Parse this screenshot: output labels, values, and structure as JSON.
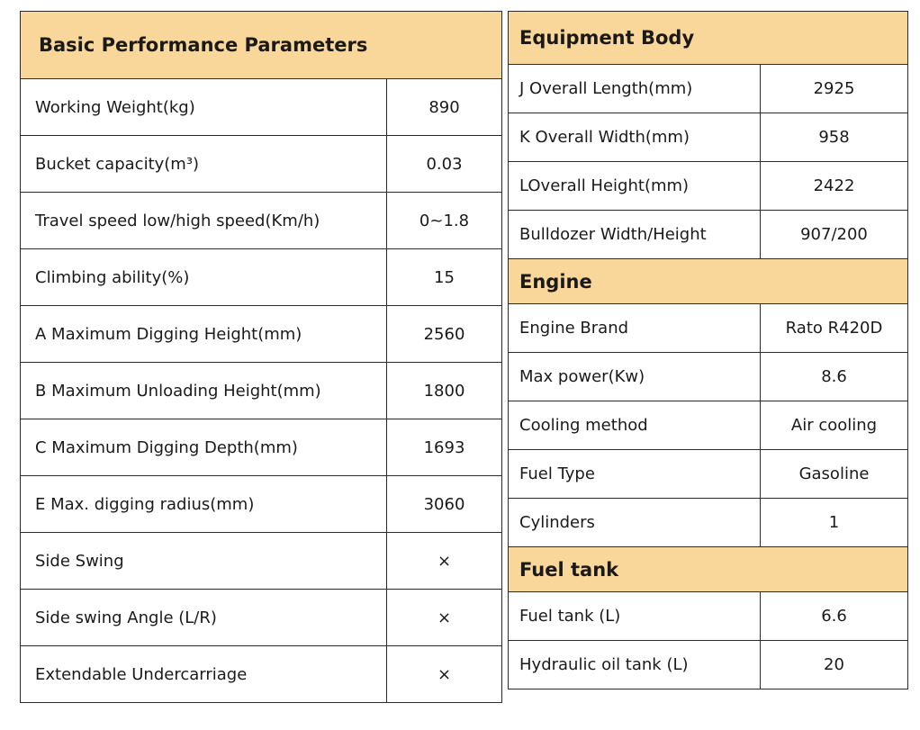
{
  "basic": {
    "title": "Basic Performance Parameters",
    "rows": [
      {
        "label": "Working Weight(kg)",
        "value": "890"
      },
      {
        "label": "Bucket capacity(m³)",
        "value": "0.03"
      },
      {
        "label": "Travel speed low/high speed(Km/h)",
        "value": "0~1.8"
      },
      {
        "label": "Climbing ability(%)",
        "value": "15"
      },
      {
        "label": "A Maximum Digging Height(mm)",
        "value": "2560"
      },
      {
        "label": "B Maximum Unloading Height(mm)",
        "value": "1800"
      },
      {
        "label": "C Maximum Digging Depth(mm)",
        "value": "1693"
      },
      {
        "label": "E Max. digging radius(mm)",
        "value": "3060"
      },
      {
        "label": "Side Swing",
        "value": "×"
      },
      {
        "label": "Side swing Angle (L/R)",
        "value": "×"
      },
      {
        "label": "Extendable Undercarriage",
        "value": "×"
      }
    ]
  },
  "body_section": {
    "title": "Equipment Body",
    "rows": [
      {
        "label": "J Overall Length(mm)",
        "value": "2925"
      },
      {
        "label": "K Overall Width(mm)",
        "value": "958"
      },
      {
        "label": "LOverall Height(mm)",
        "value": "2422"
      },
      {
        "label": "Bulldozer Width/Height",
        "value": "907/200"
      }
    ]
  },
  "engine": {
    "title": "Engine",
    "rows": [
      {
        "label": "Engine Brand",
        "value": "Rato R420D"
      },
      {
        "label": "Max power(Kw)",
        "value": "8.6"
      },
      {
        "label": "Cooling method",
        "value": "Air cooling"
      },
      {
        "label": "Fuel Type",
        "value": "Gasoline"
      },
      {
        "label": "Cylinders",
        "value": "1"
      }
    ]
  },
  "fuel_tank": {
    "title": "Fuel tank",
    "rows": [
      {
        "label": "Fuel tank (L)",
        "value": "6.6"
      },
      {
        "label": "Hydraulic oil tank (L)",
        "value": "20"
      }
    ]
  }
}
